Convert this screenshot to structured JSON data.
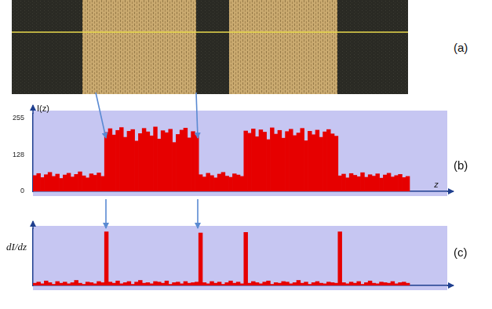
{
  "image_panel": {
    "label": "(a)"
  },
  "chart_data": [
    {
      "panel": "(b)",
      "type": "bar",
      "y_label": "I(z)",
      "x_label": "z",
      "categories": [
        null,
        null,
        null,
        null,
        null,
        null,
        null,
        null,
        null,
        null,
        null,
        null,
        null,
        null,
        null,
        null,
        null,
        null,
        null,
        null,
        null,
        null,
        null,
        null,
        null,
        null,
        null,
        null,
        null,
        null,
        null,
        null,
        null,
        null,
        null,
        null,
        null,
        null,
        null,
        null,
        null,
        null,
        null,
        null,
        null,
        null,
        null,
        null,
        null,
        null,
        null,
        null,
        null,
        null,
        null,
        null,
        null,
        null,
        null,
        null,
        null,
        null,
        null,
        null,
        null,
        null,
        null,
        null,
        null,
        null,
        null,
        null,
        null,
        null,
        null,
        null,
        null,
        null,
        null,
        null,
        null,
        null,
        null,
        null,
        null,
        null,
        null,
        null,
        null,
        null,
        null,
        null,
        null,
        null,
        null,
        null,
        null,
        null,
        null,
        null,
        null,
        null,
        null,
        null,
        null,
        null,
        null,
        null,
        null,
        null
      ],
      "values": [
        55,
        62,
        48,
        58,
        66,
        52,
        60,
        45,
        57,
        63,
        50,
        59,
        68,
        54,
        47,
        61,
        56,
        64,
        52,
        205,
        218,
        196,
        212,
        222,
        188,
        209,
        215,
        175,
        201,
        219,
        207,
        193,
        224,
        182,
        211,
        204,
        216,
        170,
        198,
        213,
        220,
        186,
        208,
        195,
        58,
        50,
        63,
        55,
        47,
        60,
        66,
        53,
        49,
        61,
        57,
        52,
        210,
        202,
        217,
        190,
        214,
        206,
        180,
        221,
        199,
        212,
        185,
        208,
        216,
        194,
        203,
        219,
        176,
        209,
        197,
        213,
        188,
        207,
        215,
        200,
        192,
        54,
        60,
        47,
        62,
        56,
        51,
        65,
        49,
        58,
        53,
        61,
        46,
        57,
        63,
        50,
        55,
        59,
        48,
        52,
        null,
        null,
        null,
        null,
        null,
        null,
        null,
        null,
        null,
        null
      ],
      "color": "#e60000",
      "ylim": [
        0,
        270
      ],
      "yticks": [
        0,
        128,
        255
      ],
      "grid": false,
      "tick_labels": "y"
    },
    {
      "panel": "(c)",
      "type": "bar",
      "y_label": "dI/dz",
      "categories": [
        null,
        null,
        null,
        null,
        null,
        null,
        null,
        null,
        null,
        null,
        null,
        null,
        null,
        null,
        null,
        null,
        null,
        null,
        null,
        null,
        null,
        null,
        null,
        null,
        null,
        null,
        null,
        null,
        null,
        null,
        null,
        null,
        null,
        null,
        null,
        null,
        null,
        null,
        null,
        null,
        null,
        null,
        null,
        null,
        null,
        null,
        null,
        null,
        null,
        null,
        null,
        null,
        null,
        null,
        null,
        null,
        null,
        null,
        null,
        null,
        null,
        null,
        null,
        null,
        null,
        null,
        null,
        null,
        null,
        null,
        null,
        null,
        null,
        null,
        null,
        null,
        null,
        null,
        null,
        null,
        null,
        null,
        null,
        null,
        null,
        null,
        null,
        null,
        null,
        null,
        null,
        null,
        null,
        null,
        null,
        null,
        null,
        null,
        null,
        null,
        null,
        null,
        null,
        null,
        null,
        null,
        null,
        null,
        null,
        null
      ],
      "values": [
        4,
        6,
        3,
        8,
        5,
        2,
        7,
        4,
        6,
        3,
        5,
        9,
        4,
        2,
        6,
        5,
        3,
        7,
        5,
        95,
        6,
        4,
        8,
        3,
        5,
        7,
        2,
        6,
        9,
        4,
        5,
        3,
        7,
        6,
        4,
        8,
        2,
        5,
        6,
        3,
        7,
        4,
        5,
        6,
        93,
        5,
        3,
        7,
        4,
        6,
        2,
        5,
        8,
        4,
        6,
        3,
        94,
        4,
        7,
        5,
        3,
        6,
        8,
        2,
        5,
        4,
        7,
        6,
        3,
        5,
        9,
        4,
        6,
        2,
        5,
        7,
        4,
        3,
        6,
        5,
        4,
        95,
        5,
        3,
        6,
        4,
        7,
        2,
        5,
        8,
        4,
        3,
        6,
        5,
        4,
        7,
        3,
        5,
        6,
        4,
        null,
        null,
        null,
        null,
        null,
        null,
        null,
        null,
        null,
        null
      ],
      "color": "#e60000",
      "ylim": [
        0,
        100
      ],
      "grid": false,
      "tick_labels": false
    }
  ]
}
